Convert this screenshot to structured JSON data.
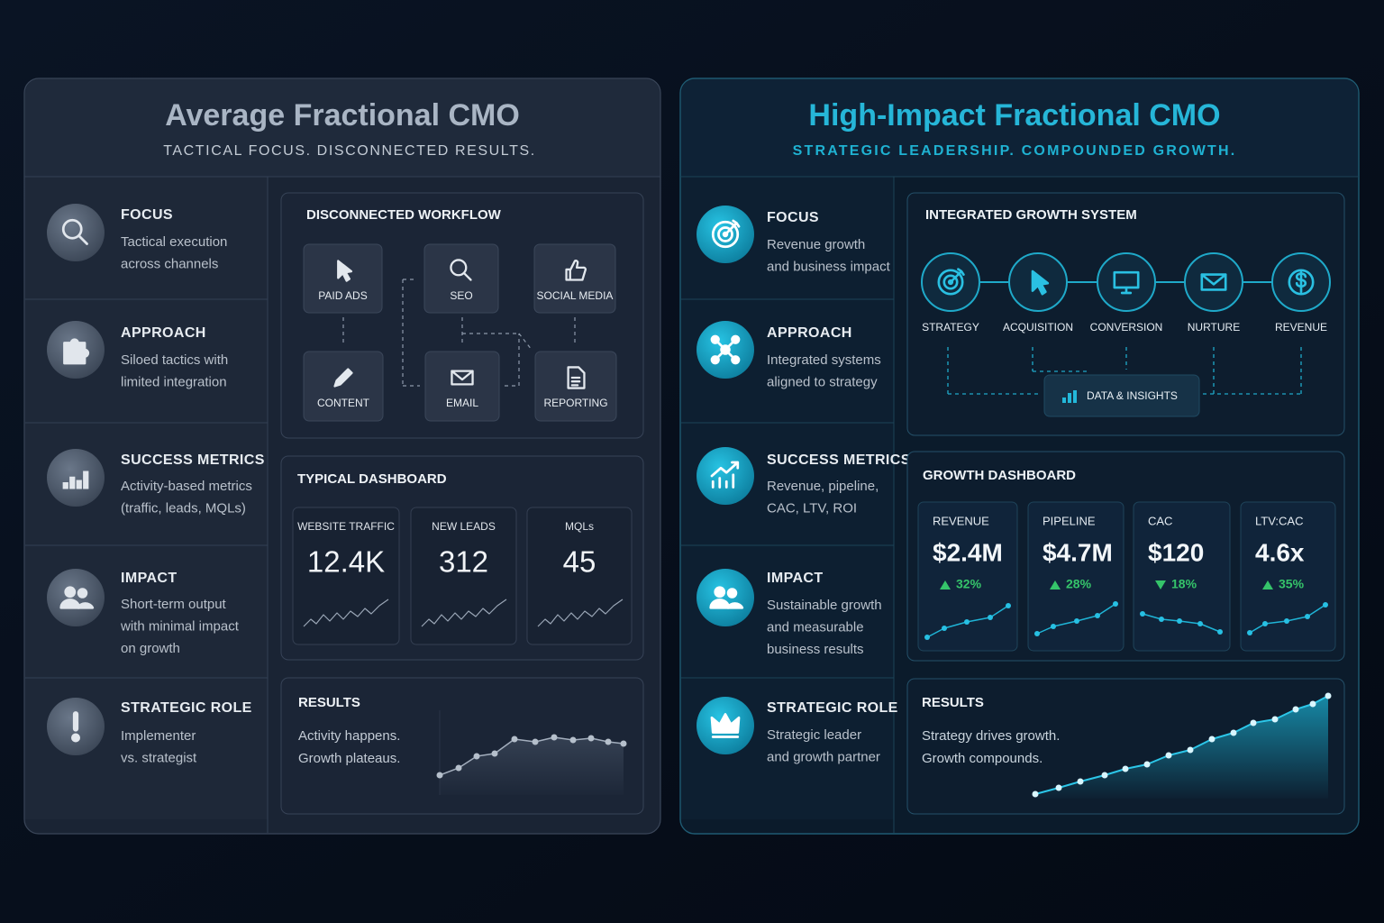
{
  "left": {
    "title": "Average Fractional CMO",
    "subtitle": "TACTICAL FOCUS. DISCONNECTED RESULTS.",
    "rows": [
      {
        "label": "FOCUS",
        "lines": [
          "Tactical execution",
          "across channels"
        ]
      },
      {
        "label": "APPROACH",
        "lines": [
          "Siloed tactics with",
          "limited integration"
        ]
      },
      {
        "label": "SUCCESS METRICS",
        "lines": [
          "Activity-based metrics",
          "(traffic, leads, MQLs)"
        ]
      },
      {
        "label": "IMPACT",
        "lines": [
          "Short-term output",
          "with minimal impact",
          "on growth"
        ]
      },
      {
        "label": "STRATEGIC ROLE",
        "lines": [
          "Implementer",
          "vs. strategist"
        ]
      }
    ],
    "workflow": {
      "title": "DISCONNECTED WORKFLOW",
      "nodes": [
        "PAID ADS",
        "SEO",
        "SOCIAL MEDIA",
        "CONTENT",
        "EMAIL",
        "REPORTING"
      ]
    },
    "dashboard": {
      "title": "TYPICAL DASHBOARD",
      "metrics": [
        {
          "label": "WEBSITE TRAFFIC",
          "value": "12.4K"
        },
        {
          "label": "NEW LEADS",
          "value": "312"
        },
        {
          "label": "MQLs",
          "value": "45"
        }
      ]
    },
    "results": {
      "title": "RESULTS",
      "lines": [
        "Activity happens.",
        "Growth plateaus."
      ]
    }
  },
  "right": {
    "title": "High-Impact Fractional CMO",
    "subtitle": "STRATEGIC LEADERSHIP. COMPOUNDED GROWTH.",
    "rows": [
      {
        "label": "FOCUS",
        "lines": [
          "Revenue growth",
          "and business impact"
        ]
      },
      {
        "label": "APPROACH",
        "lines": [
          "Integrated systems",
          "aligned to strategy"
        ]
      },
      {
        "label": "SUCCESS METRICS",
        "lines": [
          "Revenue, pipeline,",
          "CAC, LTV, ROI"
        ]
      },
      {
        "label": "IMPACT",
        "lines": [
          "Sustainable growth",
          "and measurable",
          "business results"
        ]
      },
      {
        "label": "STRATEGIC ROLE",
        "lines": [
          "Strategic leader",
          "and growth partner"
        ]
      }
    ],
    "system": {
      "title": "INTEGRATED GROWTH SYSTEM",
      "steps": [
        "STRATEGY",
        "ACQUISITION",
        "CONVERSION",
        "NURTURE",
        "REVENUE"
      ],
      "hub": "DATA & INSIGHTS"
    },
    "dashboard": {
      "title": "GROWTH DASHBOARD",
      "metrics": [
        {
          "label": "REVENUE",
          "value": "$2.4M",
          "change": "32%",
          "trend": "up"
        },
        {
          "label": "PIPELINE",
          "value": "$4.7M",
          "change": "28%",
          "trend": "up"
        },
        {
          "label": "CAC",
          "value": "$120",
          "change": "18%",
          "trend": "down"
        },
        {
          "label": "LTV:CAC",
          "value": "4.6x",
          "change": "35%",
          "trend": "up"
        }
      ]
    },
    "results": {
      "title": "RESULTS",
      "lines": [
        "Strategy drives growth.",
        "Growth compounds."
      ]
    }
  }
}
